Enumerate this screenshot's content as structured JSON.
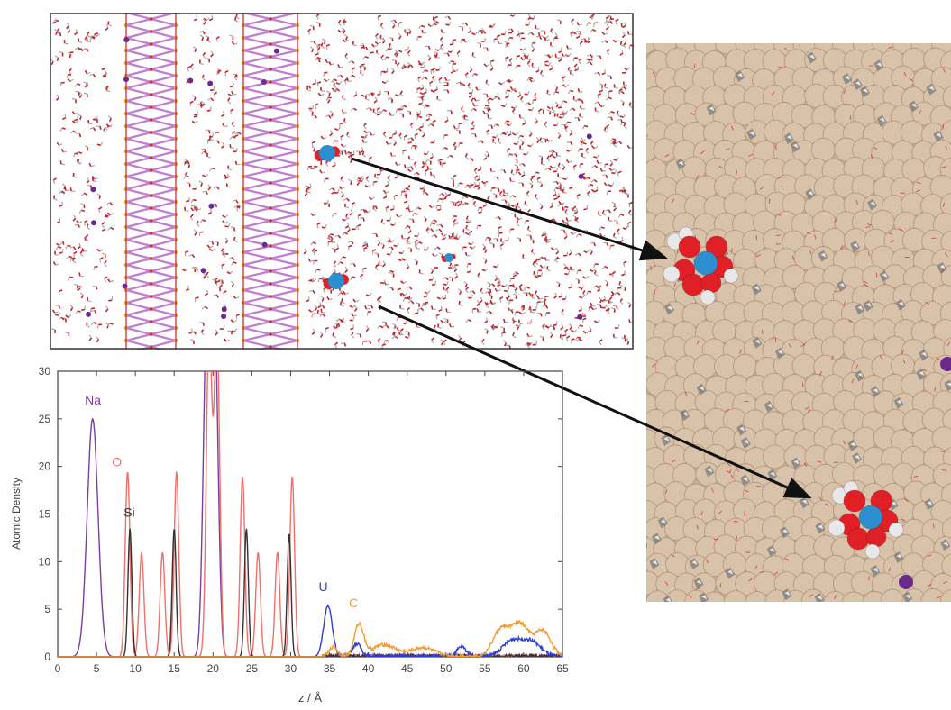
{
  "chart_data": {
    "type": "line",
    "xlabel": "z / Å",
    "ylabel": "Atomic Density",
    "xlim": [
      0,
      65
    ],
    "ylim": [
      0,
      30
    ],
    "x_ticks": [
      "0",
      "5",
      "10",
      "15",
      "20",
      "25",
      "30",
      "35",
      "40",
      "45",
      "50",
      "55",
      "60",
      "65"
    ],
    "y_ticks": [
      "0",
      "5",
      "10",
      "15",
      "20",
      "25",
      "30"
    ],
    "grid": false,
    "series": [
      {
        "name": "Na",
        "color": "#7a3fa0",
        "label_at": [
          3.5,
          26.5
        ],
        "peaks": [
          [
            4.5,
            25.0,
            0.7
          ],
          [
            19.2,
            35.0,
            0.45
          ],
          [
            20.2,
            35.0,
            0.45
          ]
        ]
      },
      {
        "name": "O",
        "color": "#f0706a",
        "label_at": [
          7.0,
          20.0
        ],
        "peaks": [
          [
            9.0,
            19.5,
            0.3
          ],
          [
            10.8,
            11.0,
            0.3
          ],
          [
            13.5,
            11.0,
            0.3
          ],
          [
            15.3,
            19.5,
            0.3
          ],
          [
            19.5,
            35.0,
            0.35
          ],
          [
            20.5,
            35.0,
            0.35
          ],
          [
            23.8,
            19.0,
            0.3
          ],
          [
            25.8,
            11.0,
            0.3
          ],
          [
            28.3,
            11.0,
            0.3
          ],
          [
            30.2,
            19.0,
            0.3
          ]
        ]
      },
      {
        "name": "Si",
        "color": "#333333",
        "label_at": [
          8.5,
          14.7
        ],
        "peaks": [
          [
            9.3,
            13.5,
            0.25
          ],
          [
            15.0,
            13.5,
            0.25
          ],
          [
            24.3,
            13.5,
            0.25
          ],
          [
            29.8,
            13.0,
            0.25
          ]
        ]
      },
      {
        "name": "U",
        "color": "#2d3fd6",
        "label_at": [
          33.6,
          6.9
        ],
        "peaks": [
          [
            34.8,
            5.3,
            0.55
          ],
          [
            38.5,
            1.3,
            0.6
          ],
          [
            52.0,
            1.0,
            0.6
          ],
          [
            58.5,
            1.6,
            1.2
          ],
          [
            61.0,
            1.5,
            1.2
          ]
        ]
      },
      {
        "name": "C",
        "color": "#f39c30",
        "label_at": [
          37.5,
          5.2
        ],
        "peaks": [
          [
            35.5,
            1.0,
            0.5
          ],
          [
            38.8,
            3.3,
            0.6
          ],
          [
            42.0,
            1.2,
            1.5
          ],
          [
            47.0,
            0.9,
            1.5
          ],
          [
            57.0,
            2.6,
            1.0
          ],
          [
            59.5,
            3.4,
            1.2
          ],
          [
            62.5,
            2.6,
            1.0
          ]
        ]
      }
    ]
  }
}
